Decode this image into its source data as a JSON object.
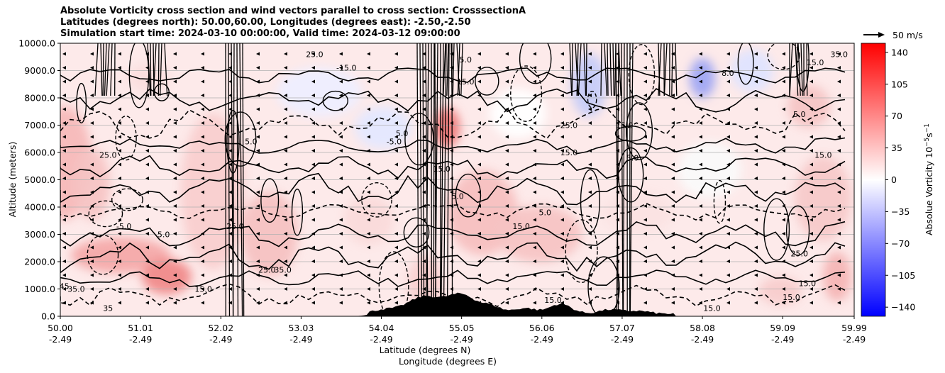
{
  "title_lines": [
    "Absolute Vorticity cross section and wind vectors parallel to cross section: CrosssectionA",
    "Latitudes (degrees north): 50.00,60.00, Longitudes (degrees east): -2.50,-2.50",
    "Simulation start time: 2024-03-10 00:00:00, Valid time: 2024-03-12 09:00:00"
  ],
  "chart_data": {
    "type": "heatmap",
    "subtype": "vertical cross section (filled contours + line contours + wind vectors)",
    "x_ticks": [
      {
        "lat": "50.00",
        "lon": "-2.49"
      },
      {
        "lat": "51.01",
        "lon": "-2.49"
      },
      {
        "lat": "52.02",
        "lon": "-2.49"
      },
      {
        "lat": "53.03",
        "lon": "-2.49"
      },
      {
        "lat": "54.04",
        "lon": "-2.49"
      },
      {
        "lat": "55.05",
        "lon": "-2.49"
      },
      {
        "lat": "56.06",
        "lon": "-2.49"
      },
      {
        "lat": "57.07",
        "lon": "-2.49"
      },
      {
        "lat": "58.08",
        "lon": "-2.49"
      },
      {
        "lat": "59.09",
        "lon": "-2.49"
      },
      {
        "lat": "59.99",
        "lon": "-2.49"
      }
    ],
    "xlim": [
      50.0,
      59.99
    ],
    "y_ticks": [
      "0.0",
      "1000.0",
      "2000.0",
      "3000.0",
      "4000.0",
      "5000.0",
      "6000.0",
      "7000.0",
      "8000.0",
      "9000.0",
      "10000.0"
    ],
    "ylim": [
      0,
      10000
    ],
    "xlabel_1": "Latitude (degrees N)",
    "xlabel_2": "Longitude (degrees E)",
    "ylabel": "Altitude (meters)",
    "grid": "horizontal",
    "colorbar": {
      "label": "Absolue Vorticity 10",
      "label_exp_base": "−5",
      "label_unit": "s",
      "label_exp_unit": "−1",
      "ticks": [
        "140",
        "105",
        "70",
        "35",
        "0",
        "−35",
        "−70",
        "−105",
        "−140"
      ],
      "range": [
        -150,
        150
      ],
      "colors": {
        "low": "#0000ff",
        "mid": "#ffffff",
        "high": "#ff0000"
      }
    },
    "quiver_key": {
      "label": "50 m/s"
    },
    "contour_labels": [
      {
        "text": "25.0",
        "lat": 50.6,
        "alt": 5800
      },
      {
        "text": "5.0",
        "lat": 52.4,
        "alt": 6300
      },
      {
        "text": "5.0",
        "lat": 51.3,
        "alt": 2900
      },
      {
        "text": "25.0",
        "lat": 52.2,
        "alt": 3200
      },
      {
        "text": "-5.0",
        "lat": 50.8,
        "alt": 3200
      },
      {
        "text": "15.0",
        "lat": 51.8,
        "alt": 900
      },
      {
        "text": "35.0",
        "lat": 50.2,
        "alt": 900
      },
      {
        "text": "45",
        "lat": 50.05,
        "alt": 1000
      },
      {
        "text": "25.0",
        "lat": 52.6,
        "alt": 1600
      },
      {
        "text": "35.0",
        "lat": 52.8,
        "alt": 1600
      },
      {
        "text": "35",
        "lat": 50.6,
        "alt": 200
      },
      {
        "text": "-15.0",
        "lat": 53.6,
        "alt": 9000
      },
      {
        "text": "25.0",
        "lat": 53.2,
        "alt": 9500
      },
      {
        "text": "-5.0",
        "lat": 54.2,
        "alt": 6300
      },
      {
        "text": "5.0",
        "lat": 54.3,
        "alt": 6600
      },
      {
        "text": "15.0",
        "lat": 54.8,
        "alt": 5300
      },
      {
        "text": "5.0",
        "lat": 55.0,
        "alt": 4300
      },
      {
        "text": "15.0",
        "lat": 55.8,
        "alt": 3200
      },
      {
        "text": "5.0",
        "lat": 56.1,
        "alt": 3700
      },
      {
        "text": "25.0",
        "lat": 56.4,
        "alt": 6900
      },
      {
        "text": "15.0",
        "lat": 56.4,
        "alt": 5900
      },
      {
        "text": "15.0",
        "lat": 57.1,
        "alt": 6900
      },
      {
        "text": "5.0",
        "lat": 57.2,
        "alt": 5700
      },
      {
        "text": "15.0",
        "lat": 58.2,
        "alt": 200
      },
      {
        "text": "15.0",
        "lat": 59.4,
        "alt": 1100
      },
      {
        "text": "15.0",
        "lat": 59.2,
        "alt": 600
      },
      {
        "text": "15.0",
        "lat": 59.6,
        "alt": 5800
      },
      {
        "text": "25.0",
        "lat": 59.3,
        "alt": 2200
      },
      {
        "text": "15.0",
        "lat": 59.5,
        "alt": 9200
      },
      {
        "text": "8.0",
        "lat": 58.4,
        "alt": 8800
      },
      {
        "text": "5.0",
        "lat": 59.3,
        "alt": 7300
      },
      {
        "text": "35.0",
        "lat": 59.8,
        "alt": 9500
      },
      {
        "text": "15.0",
        "lat": 55.1,
        "alt": 8500
      },
      {
        "text": "5.0",
        "lat": 55.1,
        "alt": 9300
      },
      {
        "text": "15.0",
        "lat": 56.2,
        "alt": 500
      }
    ]
  }
}
